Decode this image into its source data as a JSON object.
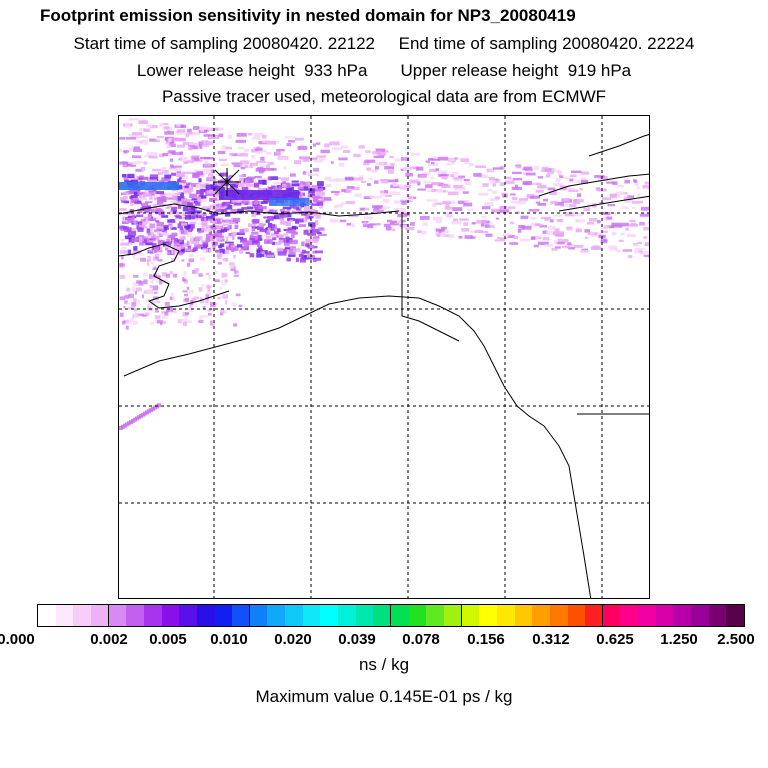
{
  "header": {
    "title": "Footprint emission sensitivity in nested domain for NP3_20080419",
    "line2": "Start time of sampling 20080420. 22122     End time of sampling 20080420. 22224",
    "line3": "Lower release height  933 hPa       Upper release height  919 hPa",
    "line4": "Passive tracer used, meteorological data are from ECMWF"
  },
  "colorbar": {
    "colors": [
      "#ffffff",
      "#fde7fd",
      "#f8cdf8",
      "#f0b0f5",
      "#d88af2",
      "#c260f0",
      "#a834ee",
      "#8a10ea",
      "#5a10e8",
      "#2a10e8",
      "#1020f0",
      "#1050f8",
      "#1080f8",
      "#10a8f8",
      "#10c8f8",
      "#10e8f8",
      "#00ffff",
      "#00f0d8",
      "#00e8b0",
      "#00e080",
      "#00e050",
      "#20e020",
      "#60e820",
      "#a0f010",
      "#d0f800",
      "#ffff00",
      "#ffe800",
      "#ffc800",
      "#ffa000",
      "#ff7800",
      "#ff5000",
      "#ff2020",
      "#ff0060",
      "#ff0088",
      "#f000a0",
      "#d800a8",
      "#b800a8",
      "#980098",
      "#780070",
      "#580048"
    ],
    "tick_labels": [
      "0.000",
      "0.002",
      "0.005",
      "0.010",
      "0.020",
      "0.039",
      "0.078",
      "0.156",
      "0.312",
      "0.625",
      "1.250",
      "2.500"
    ],
    "unit": "ns / kg"
  },
  "maximum_label": "Maximum value  0.145E-01 ps / kg",
  "map": {
    "grid_lines": "dashed",
    "release_marker": "asterisk",
    "plume_colors": [
      "#f6d4f8",
      "#e8a8f4",
      "#c870f0",
      "#a040ea",
      "#6a28e8",
      "#2a70f0"
    ]
  }
}
